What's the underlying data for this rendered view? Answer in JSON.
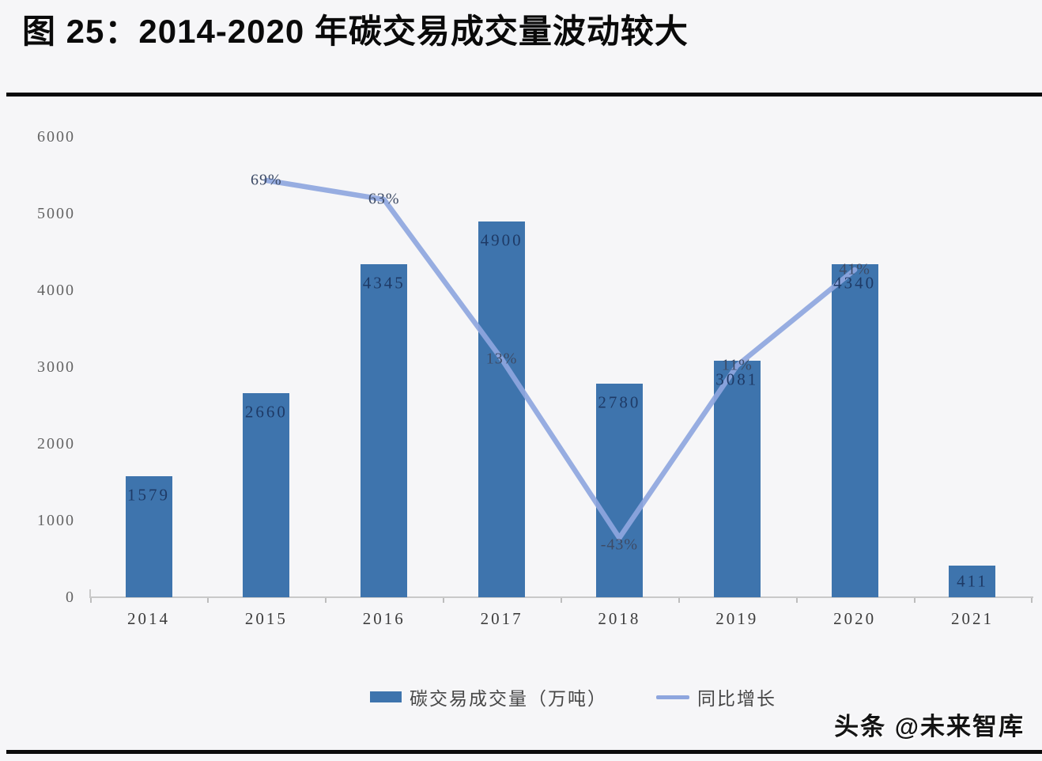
{
  "page": {
    "title": "图 25：2014-2020 年碳交易成交量波动较大",
    "watermark": "头条 @未来智库"
  },
  "colors": {
    "bar": "#3e74ad",
    "line": "#8ea6de",
    "bar_label": "#1e3a66",
    "axis_text": "#646464"
  },
  "chart_data": {
    "type": "bar",
    "title": "图 25：2014-2020 年碳交易成交量波动较大",
    "categories": [
      "2014",
      "2015",
      "2016",
      "2017",
      "2018",
      "2019",
      "2020",
      "2021"
    ],
    "series": [
      {
        "name": "碳交易成交量（万吨）",
        "type": "bar",
        "values": [
          1579,
          2660,
          4345,
          4900,
          2780,
          3081,
          4340,
          411
        ],
        "data_labels": [
          "1579",
          "2660",
          "4345",
          "4900",
          "2780",
          "3081",
          "4340",
          "411"
        ],
        "color": "#3e74ad"
      },
      {
        "name": "同比增长",
        "type": "line",
        "values": [
          null,
          69,
          63,
          13,
          -43,
          11,
          41,
          null
        ],
        "unit": "%",
        "data_labels": [
          "",
          "69%",
          "63%",
          "13%",
          "-43%",
          "11%",
          "41%",
          ""
        ],
        "color": "#8ea6de"
      }
    ],
    "y_axis": {
      "ticks": [
        "0",
        "1000",
        "2000",
        "3000",
        "4000",
        "5000",
        "6000"
      ],
      "range": [
        0,
        6000
      ]
    },
    "grid": false,
    "legend": [
      "碳交易成交量（万吨）",
      "同比增长"
    ],
    "legend_position": "bottom"
  }
}
